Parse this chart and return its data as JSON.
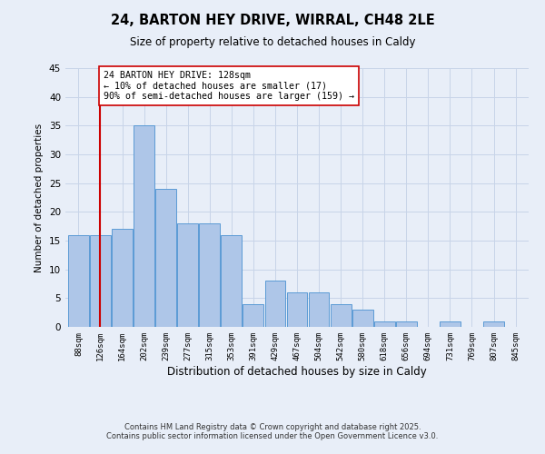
{
  "title": "24, BARTON HEY DRIVE, WIRRAL, CH48 2LE",
  "subtitle": "Size of property relative to detached houses in Caldy",
  "bar_labels": [
    "88sqm",
    "126sqm",
    "164sqm",
    "202sqm",
    "239sqm",
    "277sqm",
    "315sqm",
    "353sqm",
    "391sqm",
    "429sqm",
    "467sqm",
    "504sqm",
    "542sqm",
    "580sqm",
    "618sqm",
    "656sqm",
    "694sqm",
    "731sqm",
    "769sqm",
    "807sqm",
    "845sqm"
  ],
  "bar_heights": [
    16,
    16,
    17,
    35,
    24,
    18,
    18,
    16,
    4,
    8,
    6,
    6,
    4,
    3,
    1,
    1,
    0,
    1,
    0,
    1,
    0
  ],
  "bar_color": "#aec6e8",
  "bar_edge_color": "#5b9bd5",
  "vline_x": 1,
  "vline_color": "#cc0000",
  "annotation_line1": "24 BARTON HEY DRIVE: 128sqm",
  "annotation_line2": "← 10% of detached houses are smaller (17)",
  "annotation_line3": "90% of semi-detached houses are larger (159) →",
  "annotation_box_color": "#ffffff",
  "annotation_box_edge_color": "#cc0000",
  "ylabel": "Number of detached properties",
  "xlabel": "Distribution of detached houses by size in Caldy",
  "ylim": [
    0,
    45
  ],
  "yticks": [
    0,
    5,
    10,
    15,
    20,
    25,
    30,
    35,
    40,
    45
  ],
  "bg_color": "#e8eef8",
  "grid_color": "#c8d4e8",
  "footer_line1": "Contains HM Land Registry data © Crown copyright and database right 2025.",
  "footer_line2": "Contains public sector information licensed under the Open Government Licence v3.0."
}
